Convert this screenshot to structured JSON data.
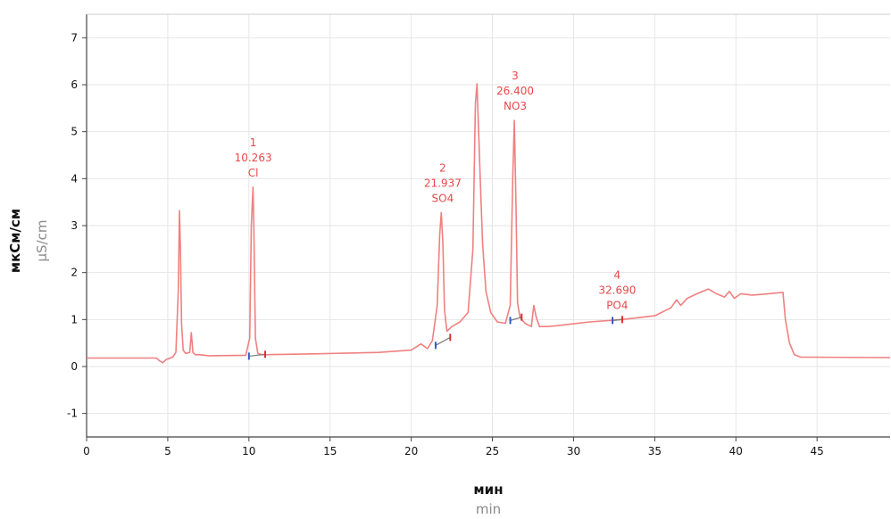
{
  "chart_data": {
    "type": "line",
    "xlabel": "мин",
    "xlabel_secondary": "min",
    "ylabel": "мкСм/см",
    "ylabel_secondary": "µS/cm",
    "xlim": [
      0,
      49.5
    ],
    "ylim": [
      -1.5,
      7.5
    ],
    "x_ticks": [
      0,
      5,
      10,
      15,
      20,
      25,
      30,
      35,
      40,
      45
    ],
    "y_ticks": [
      -1,
      0,
      1,
      2,
      3,
      4,
      5,
      6,
      7
    ],
    "grid": true,
    "line_color": "#f08080",
    "annotation_color": "#e8474a",
    "series": [
      {
        "x": [
          0,
          4.3,
          4.5,
          4.7,
          4.9,
          5.3,
          5.5,
          5.65,
          5.72,
          5.78,
          5.85,
          5.95,
          6.1,
          6.35,
          6.45,
          6.55,
          6.7,
          7.0,
          7.5,
          9.8,
          10.05,
          10.15,
          10.25,
          10.3,
          10.4,
          10.55,
          10.8,
          14,
          18,
          20,
          20.6,
          21.0,
          21.3,
          21.6,
          21.75,
          21.85,
          21.95,
          22.05,
          22.2,
          22.5,
          23.0,
          23.5,
          23.8,
          23.95,
          24.05,
          24.15,
          24.25,
          24.4,
          24.6,
          24.9,
          25.3,
          25.8,
          26.1,
          26.25,
          26.35,
          26.45,
          26.55,
          26.7,
          27.0,
          27.4,
          27.55,
          27.7,
          27.9,
          28.4,
          29,
          31,
          33,
          35,
          36.0,
          36.35,
          36.6,
          37.0,
          37.6,
          38.3,
          38.8,
          39.3,
          39.6,
          39.9,
          40.3,
          41,
          42,
          42.9,
          43.05,
          43.3,
          43.6,
          44,
          44.5,
          49.5
        ],
        "y": [
          0.18,
          0.18,
          0.12,
          0.08,
          0.15,
          0.2,
          0.3,
          1.6,
          3.32,
          2.5,
          0.9,
          0.35,
          0.28,
          0.3,
          0.72,
          0.3,
          0.25,
          0.25,
          0.23,
          0.24,
          0.6,
          3.0,
          3.82,
          3.0,
          0.6,
          0.28,
          0.25,
          0.27,
          0.3,
          0.35,
          0.48,
          0.38,
          0.55,
          1.3,
          2.8,
          3.28,
          2.6,
          1.2,
          0.75,
          0.85,
          0.95,
          1.15,
          2.5,
          5.6,
          6.02,
          5.0,
          4.0,
          2.6,
          1.6,
          1.15,
          0.95,
          0.92,
          1.3,
          4.0,
          5.24,
          3.5,
          1.35,
          1.05,
          0.92,
          0.85,
          1.3,
          1.05,
          0.85,
          0.85,
          0.87,
          0.95,
          1.0,
          1.08,
          1.25,
          1.42,
          1.3,
          1.45,
          1.55,
          1.65,
          1.55,
          1.48,
          1.6,
          1.45,
          1.55,
          1.52,
          1.55,
          1.58,
          1.0,
          0.5,
          0.25,
          0.2,
          0.2,
          0.19
        ]
      }
    ],
    "annotations": [
      {
        "number": "1",
        "value": "10.263",
        "label": "Cl",
        "x": 10.263,
        "y": 3.82
      },
      {
        "number": "2",
        "value": "21.937",
        "label": "SO4",
        "x": 21.937,
        "y": 3.28
      },
      {
        "number": "3",
        "value": "26.400",
        "label": "NO3",
        "x": 26.4,
        "y": 5.24
      },
      {
        "number": "4",
        "value": "32.690",
        "label": "PO4",
        "x": 32.69,
        "y": 1.0
      }
    ],
    "baselines": [
      {
        "x1": 10.0,
        "y1": 0.22,
        "x2": 11.0,
        "y2": 0.26
      },
      {
        "x1": 21.5,
        "y1": 0.45,
        "x2": 22.4,
        "y2": 0.62
      },
      {
        "x1": 26.1,
        "y1": 0.98,
        "x2": 26.8,
        "y2": 1.05
      },
      {
        "x1": 32.4,
        "y1": 0.98,
        "x2": 33.0,
        "y2": 1.0
      }
    ]
  }
}
